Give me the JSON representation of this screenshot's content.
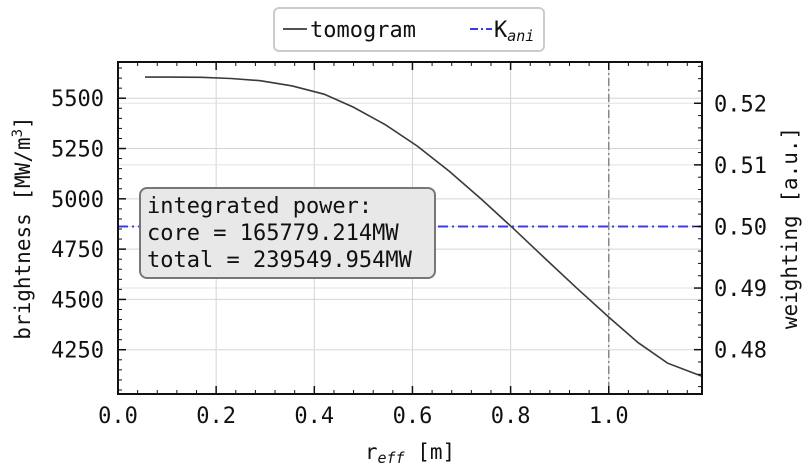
{
  "chart_data": {
    "type": "line",
    "xlabel_main": "r",
    "xlabel_sub": "eff",
    "xlabel_unit": " [m]",
    "ylabel_left_pre": "brightness [MW/m",
    "ylabel_left_sup": "3",
    "ylabel_left_post": "]",
    "ylabel_right": "weighting [a.u.]",
    "xlim": [
      0.0,
      1.19
    ],
    "ylim_left": [
      4030,
      5680
    ],
    "ylim_right": [
      0.4728,
      0.5267
    ],
    "xticks": [
      "0.0",
      "0.2",
      "0.4",
      "0.6",
      "0.8",
      "1.0"
    ],
    "yticks_left": [
      "4250",
      "4500",
      "4750",
      "5000",
      "5250",
      "5500"
    ],
    "yticks_right": [
      "0.48",
      "0.49",
      "0.50",
      "0.51",
      "0.52"
    ],
    "grid": true,
    "legend_position": "top-center, outside",
    "series": [
      {
        "name": "tomogram",
        "color": "#3a3a3a",
        "style": "solid",
        "x": [
          0.055,
          0.1,
          0.17,
          0.23,
          0.29,
          0.355,
          0.42,
          0.48,
          0.545,
          0.61,
          0.675,
          0.74,
          0.805,
          0.87,
          0.935,
          1.0,
          1.06,
          1.12,
          1.19
        ],
        "y": [
          5605,
          5605,
          5604,
          5598,
          5587,
          5561,
          5520,
          5455,
          5368,
          5262,
          5137,
          4999,
          4854,
          4704,
          4556,
          4412,
          4285,
          4183,
          4118
        ]
      },
      {
        "name": "K",
        "name_sub": "ani",
        "color": "#3b3be6",
        "style": "dashdot",
        "axis": "right",
        "x": [
          0.0,
          1.19
        ],
        "y": [
          0.5,
          0.5
        ]
      }
    ],
    "vertical_line": {
      "x": 1.0,
      "color": "#888888",
      "style": "dashdot"
    },
    "annotation": {
      "lines": [
        "integrated power:",
        "core = 165779.214MW",
        "total = 239549.954MW"
      ]
    }
  }
}
